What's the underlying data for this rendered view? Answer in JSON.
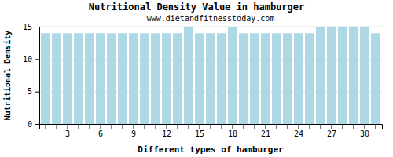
{
  "chart_data": {
    "type": "bar",
    "title": "Nutritional Density Value in hamburger",
    "subtitle": "www.dietandfitnesstoday.com",
    "x_label": "Different types of hamburger",
    "y_label": "Nutritional Density",
    "categories": [
      null,
      null,
      "3",
      null,
      null,
      "6",
      null,
      null,
      "9",
      null,
      null,
      "12",
      null,
      null,
      "15",
      null,
      null,
      "18",
      null,
      null,
      "21",
      null,
      null,
      "24",
      null,
      null,
      "27",
      null,
      null,
      "30",
      null
    ],
    "values": [
      14,
      14,
      14,
      14,
      14,
      14,
      14,
      14,
      14,
      14,
      14,
      14,
      14,
      15,
      14,
      14,
      14,
      15,
      14,
      14,
      14,
      14,
      14,
      14,
      14,
      15,
      15,
      15,
      15,
      15,
      14
    ],
    "color": "#add8e6",
    "ylim": [
      0,
      15
    ],
    "yticks": [
      0,
      5,
      10,
      15
    ],
    "grid": true
  }
}
